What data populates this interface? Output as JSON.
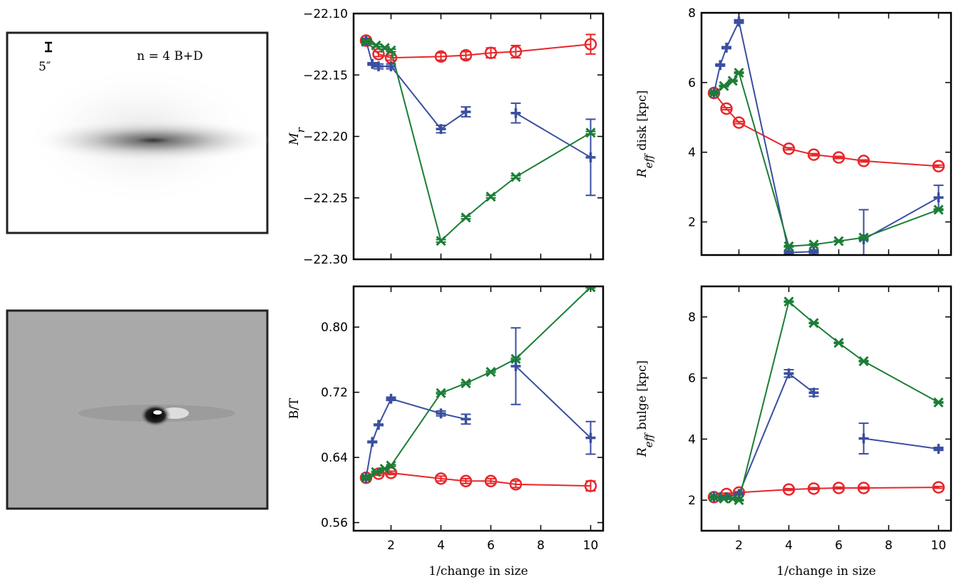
{
  "image_panels": {
    "model_label": "n = 4 B+D",
    "scale_label": "5″"
  },
  "chart_data": [
    {
      "type": "line",
      "ylabel": [
        "M",
        "r",
        ""
      ],
      "xlim": [
        0.5,
        10.5
      ],
      "xticks": [
        2,
        4,
        6,
        8,
        10
      ],
      "xtick_labels": false,
      "ylim": [
        -22.3,
        -22.1
      ],
      "yticks": [
        {
          "value": -22.3,
          "label": "−22.30"
        },
        {
          "value": -22.25,
          "label": "−22.25"
        },
        {
          "value": -22.2,
          "label": "−22.20"
        },
        {
          "value": -22.15,
          "label": "−22.15"
        },
        {
          "value": -22.1,
          "label": "−22.10"
        }
      ],
      "series": [
        {
          "color": "#e8262a",
          "marker": "o",
          "x": [
            1,
            1.5,
            2,
            4,
            5,
            6,
            7,
            10
          ],
          "values": [
            -22.122,
            -22.133,
            -22.136,
            -22.135,
            -22.134,
            -22.132,
            -22.131,
            -22.125
          ],
          "errors": [
            0.002,
            0.002,
            0.002,
            0.003,
            0.003,
            0.004,
            0.005,
            0.008
          ]
        },
        {
          "color": "#3a4fa0",
          "marker": "+",
          "x": [
            1,
            1.25,
            1.5,
            2,
            4,
            5,
            6,
            7,
            10
          ],
          "values": [
            -22.122,
            -22.141,
            -22.143,
            -22.143,
            -22.194,
            -22.18,
            null,
            -22.181,
            -22.217
          ],
          "errors": [
            0.001,
            0.001,
            0.002,
            0.002,
            0.003,
            0.004,
            null,
            0.008,
            0.031
          ]
        },
        {
          "color": "#1a7e35",
          "marker": "x",
          "x": [
            1,
            1.4,
            1.75,
            2,
            4,
            5,
            6,
            7,
            10
          ],
          "values": [
            -22.123,
            -22.126,
            -22.128,
            -22.13,
            -22.285,
            -22.266,
            -22.249,
            -22.233,
            -22.197
          ],
          "errors": [
            0.001,
            0.001,
            0.001,
            0.001,
            0.001,
            0.001,
            0.001,
            0.001,
            0.001
          ]
        }
      ]
    },
    {
      "type": "line",
      "ylabel": [
        "B/T",
        "",
        ""
      ],
      "xlabel": "1/change in size",
      "xlim": [
        0.5,
        10.5
      ],
      "xticks": [
        2,
        4,
        6,
        8,
        10
      ],
      "xtick_labels": true,
      "ylim": [
        0.55,
        0.85
      ],
      "yticks": [
        0.56,
        0.64,
        0.72,
        {
          "value": 0.8,
          "label": "0.80"
        }
      ],
      "series": [
        {
          "color": "#e8262a",
          "marker": "o",
          "x": [
            1,
            1.5,
            2,
            4,
            5,
            6,
            7,
            10
          ],
          "values": [
            0.615,
            0.62,
            0.621,
            0.614,
            0.611,
            0.611,
            0.607,
            0.605
          ],
          "errors": [
            0.002,
            0.002,
            0.002,
            0.003,
            0.003,
            0.003,
            0.004,
            0.006
          ]
        },
        {
          "color": "#3a4fa0",
          "marker": "+",
          "x": [
            1,
            1.25,
            1.5,
            2,
            4,
            5,
            6,
            7,
            10
          ],
          "values": [
            0.615,
            0.659,
            0.68,
            0.712,
            0.694,
            0.687,
            null,
            0.752,
            0.664
          ],
          "errors": [
            0.002,
            0.001,
            0.001,
            0.002,
            0.003,
            0.006,
            null,
            0.047,
            0.02
          ]
        },
        {
          "color": "#1a7e35",
          "marker": "x",
          "x": [
            1,
            1.4,
            1.75,
            2,
            4,
            5,
            6,
            7,
            10
          ],
          "values": [
            0.615,
            0.622,
            0.626,
            0.63,
            0.719,
            0.731,
            0.745,
            0.761,
            0.849
          ],
          "errors": [
            0.001,
            0.001,
            0.001,
            0.001,
            0.001,
            0.001,
            0.001,
            0.001,
            0.001
          ]
        }
      ]
    },
    {
      "type": "line",
      "ylabel": [
        "R",
        "eff",
        " disk [kpc]"
      ],
      "xlim": [
        0.5,
        10.5
      ],
      "xticks": [
        2,
        4,
        6,
        8,
        10
      ],
      "xtick_labels": false,
      "ylim": [
        1.05,
        8
      ],
      "yticks": [
        2,
        4,
        6,
        8
      ],
      "series": [
        {
          "color": "#e8262a",
          "marker": "o",
          "x": [
            1,
            1.5,
            2,
            4,
            5,
            6,
            7,
            10
          ],
          "values": [
            5.7,
            5.25,
            4.85,
            4.1,
            3.93,
            3.85,
            3.75,
            3.6
          ],
          "errors": [
            0.03,
            0.03,
            0.03,
            0.03,
            0.03,
            0.03,
            0.03,
            0.03
          ]
        },
        {
          "color": "#3a4fa0",
          "marker": "+",
          "x": [
            1,
            1.25,
            1.5,
            2,
            4,
            5,
            6,
            7,
            10
          ],
          "values": [
            5.7,
            6.5,
            7.0,
            7.75,
            1.12,
            1.15,
            null,
            1.5,
            2.7
          ],
          "errors": [
            0.03,
            0.03,
            0.03,
            0.05,
            0.05,
            0.05,
            null,
            0.85,
            0.35
          ]
        },
        {
          "color": "#1a7e35",
          "marker": "x",
          "x": [
            1,
            1.4,
            1.75,
            2,
            4,
            5,
            6,
            7,
            10
          ],
          "values": [
            5.7,
            5.9,
            6.05,
            6.28,
            1.3,
            1.35,
            1.45,
            1.55,
            2.35
          ],
          "errors": [
            0.02,
            0.02,
            0.02,
            0.02,
            0.02,
            0.02,
            0.02,
            0.02,
            0.02
          ]
        }
      ]
    },
    {
      "type": "line",
      "ylabel": [
        "R",
        "eff",
        " bulge [kpc]"
      ],
      "xlabel": "1/change in size",
      "xlim": [
        0.5,
        10.5
      ],
      "xticks": [
        2,
        4,
        6,
        8,
        10
      ],
      "xtick_labels": true,
      "ylim": [
        1.0,
        9.0
      ],
      "yticks": [
        2,
        4,
        6,
        8
      ],
      "series": [
        {
          "color": "#e8262a",
          "marker": "o",
          "x": [
            1,
            1.5,
            2,
            4,
            5,
            6,
            7,
            10
          ],
          "values": [
            2.1,
            2.2,
            2.25,
            2.35,
            2.38,
            2.4,
            2.4,
            2.42
          ],
          "errors": [
            0.03,
            0.03,
            0.03,
            0.03,
            0.03,
            0.03,
            0.03,
            0.03
          ]
        },
        {
          "color": "#3a4fa0",
          "marker": "+",
          "x": [
            1,
            1.25,
            1.5,
            2,
            4,
            5,
            6,
            7,
            10
          ],
          "values": [
            2.1,
            2.1,
            2.1,
            2.2,
            6.15,
            5.52,
            null,
            4.02,
            3.68
          ],
          "errors": [
            0.03,
            0.03,
            0.03,
            0.03,
            0.12,
            0.12,
            null,
            0.5,
            0.05
          ]
        },
        {
          "color": "#1a7e35",
          "marker": "x",
          "x": [
            1,
            1.4,
            1.75,
            2,
            4,
            5,
            6,
            7,
            10
          ],
          "values": [
            2.1,
            2.05,
            2.05,
            2.0,
            8.5,
            7.8,
            7.15,
            6.55,
            5.2
          ],
          "errors": [
            0.02,
            0.02,
            0.02,
            0.02,
            0.02,
            0.02,
            0.02,
            0.02,
            0.02
          ]
        }
      ]
    }
  ]
}
